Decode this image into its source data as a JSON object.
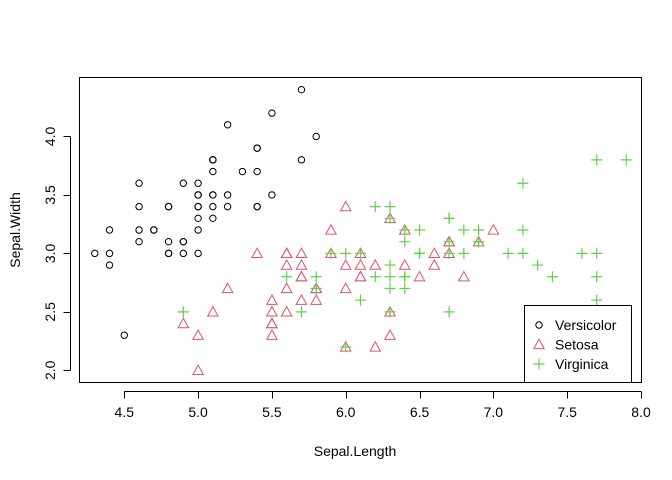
{
  "chart_data": {
    "type": "scatter",
    "title": "",
    "xlabel": "Sepal.Length",
    "ylabel": "Sepal.Width",
    "xlim": [
      4.2,
      8.0
    ],
    "ylim": [
      1.9,
      4.5
    ],
    "xticks": [
      4.5,
      5.0,
      5.5,
      6.0,
      6.5,
      7.0,
      7.5,
      8.0
    ],
    "yticks": [
      2.0,
      2.5,
      3.0,
      3.5,
      4.0
    ],
    "xtick_labels": [
      "4.5",
      "5.0",
      "5.5",
      "6.0",
      "6.5",
      "7.0",
      "7.5",
      "8.0"
    ],
    "ytick_labels": [
      "2.0",
      "2.5",
      "3.0",
      "3.5",
      "4.0"
    ],
    "grid": false,
    "legend_position": "bottom-right",
    "series": [
      {
        "name": "Versicolor",
        "marker": "circle",
        "color": "#000000",
        "x": [
          5.1,
          4.9,
          4.7,
          4.6,
          5.0,
          5.4,
          4.6,
          5.0,
          4.4,
          4.9,
          5.4,
          4.8,
          4.8,
          4.3,
          5.8,
          5.7,
          5.4,
          5.1,
          5.7,
          5.1,
          5.4,
          5.1,
          4.6,
          5.1,
          4.8,
          5.0,
          5.0,
          5.2,
          5.2,
          4.7,
          4.8,
          5.4,
          5.2,
          5.5,
          4.9,
          5.0,
          5.5,
          4.9,
          4.4,
          5.1,
          5.0,
          4.5,
          4.4,
          5.0,
          5.1,
          4.8,
          5.1,
          4.6,
          5.3,
          5.0
        ],
        "y": [
          3.5,
          3.0,
          3.2,
          3.1,
          3.6,
          3.9,
          3.4,
          3.4,
          2.9,
          3.1,
          3.7,
          3.4,
          3.0,
          3.0,
          4.0,
          4.4,
          3.9,
          3.5,
          3.8,
          3.8,
          3.4,
          3.7,
          3.6,
          3.3,
          3.4,
          3.0,
          3.4,
          3.5,
          3.4,
          3.2,
          3.1,
          3.4,
          4.1,
          4.2,
          3.1,
          3.2,
          3.5,
          3.6,
          3.0,
          3.4,
          3.5,
          2.3,
          3.2,
          3.5,
          3.8,
          3.0,
          3.8,
          3.2,
          3.7,
          3.3
        ]
      },
      {
        "name": "Setosa",
        "marker": "triangle",
        "color": "#DF536B",
        "x": [
          7.0,
          6.4,
          6.9,
          5.5,
          6.5,
          5.7,
          6.3,
          4.9,
          6.6,
          5.2,
          5.0,
          5.9,
          6.0,
          6.1,
          5.6,
          6.7,
          5.6,
          5.8,
          6.2,
          5.6,
          5.9,
          6.1,
          6.3,
          6.1,
          6.4,
          6.6,
          6.8,
          6.7,
          6.0,
          5.7,
          5.5,
          5.5,
          5.8,
          6.0,
          5.4,
          6.0,
          6.7,
          6.3,
          5.6,
          5.5,
          5.5,
          6.1,
          5.8,
          5.0,
          5.6,
          5.7,
          5.7,
          6.2,
          5.1,
          5.7
        ],
        "y": [
          3.2,
          3.2,
          3.1,
          2.3,
          2.8,
          2.8,
          3.3,
          2.4,
          2.9,
          2.7,
          2.0,
          3.0,
          2.2,
          2.9,
          2.9,
          3.1,
          3.0,
          2.7,
          2.2,
          2.5,
          3.2,
          2.8,
          2.5,
          2.8,
          2.9,
          3.0,
          2.8,
          3.0,
          2.9,
          2.6,
          2.4,
          2.4,
          2.7,
          2.7,
          3.0,
          3.4,
          3.1,
          2.3,
          3.0,
          2.5,
          2.6,
          3.0,
          2.6,
          2.3,
          2.7,
          3.0,
          2.9,
          2.9,
          2.5,
          2.8
        ]
      },
      {
        "name": "Virginica",
        "marker": "plus",
        "color": "#61D04F",
        "x": [
          6.3,
          5.8,
          7.1,
          6.3,
          6.5,
          7.6,
          4.9,
          7.3,
          6.7,
          7.2,
          6.5,
          6.4,
          6.8,
          5.7,
          5.8,
          6.4,
          6.5,
          7.7,
          7.7,
          6.0,
          6.9,
          5.6,
          7.7,
          6.3,
          6.7,
          7.2,
          6.2,
          6.1,
          6.4,
          7.2,
          7.4,
          7.9,
          6.4,
          6.3,
          6.1,
          7.7,
          6.3,
          6.4,
          6.0,
          6.9,
          6.7,
          6.9,
          5.8,
          6.8,
          6.7,
          6.7,
          6.3,
          6.5,
          6.2,
          5.9
        ],
        "y": [
          3.3,
          2.7,
          3.0,
          2.9,
          3.0,
          3.0,
          2.5,
          2.9,
          2.5,
          3.6,
          3.2,
          2.7,
          3.0,
          2.5,
          2.8,
          3.2,
          3.0,
          3.8,
          2.6,
          2.2,
          3.2,
          2.8,
          2.8,
          2.7,
          3.3,
          3.2,
          2.8,
          3.0,
          2.8,
          3.0,
          2.8,
          3.8,
          2.8,
          2.8,
          2.6,
          3.0,
          3.4,
          3.1,
          3.0,
          3.1,
          3.1,
          3.1,
          2.7,
          3.2,
          3.3,
          3.0,
          2.5,
          3.0,
          3.4,
          3.0
        ]
      }
    ]
  }
}
